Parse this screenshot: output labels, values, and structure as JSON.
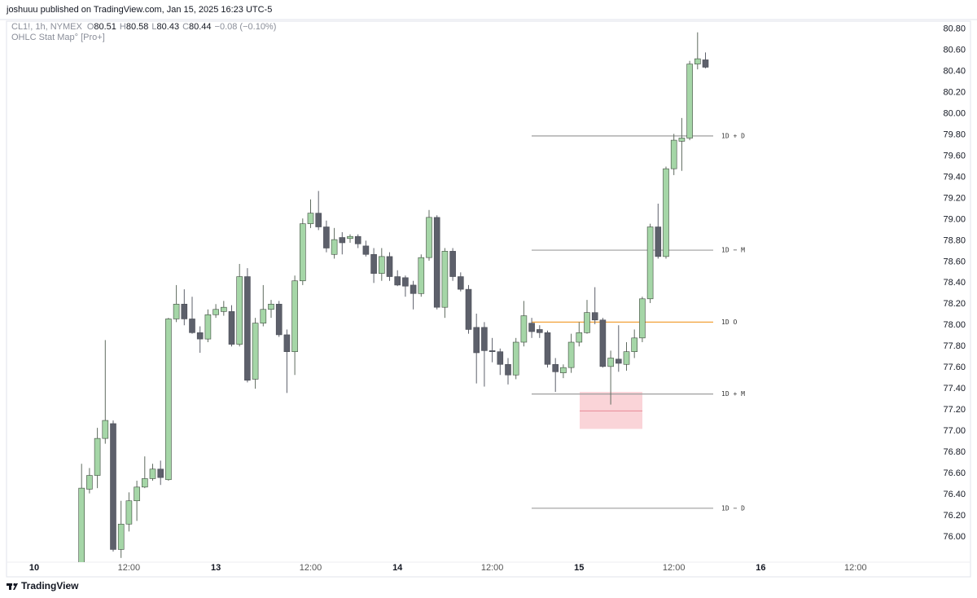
{
  "published": "joshuuu published on TradingView.com, Jan 15, 2025 16:23 UTC-5",
  "brand": "TradingView",
  "chart_data": {
    "type": "candlestick",
    "symbol": "CL1!, 1h, NYMEX",
    "ohlc": [
      {
        "label": "O",
        "value": 80.51
      },
      {
        "label": "H",
        "value": 80.58
      },
      {
        "label": "L",
        "value": 80.43
      },
      {
        "label": "C",
        "value": 80.44
      }
    ],
    "change": "−0.08 (−0.10%)",
    "indicator": "OHLC Stat Map° [Pro+]",
    "categories": [
      "10",
      null,
      null,
      null,
      null,
      null,
      null,
      null,
      null,
      null,
      null,
      null,
      "12:00",
      null,
      null,
      null,
      null,
      null,
      null,
      null,
      null,
      null,
      null,
      "13",
      null,
      null,
      null,
      null,
      null,
      null,
      null,
      null,
      null,
      null,
      null,
      "12:00",
      null,
      null,
      null,
      null,
      null,
      null,
      null,
      null,
      null,
      null,
      "14",
      null,
      null,
      null,
      null,
      null,
      null,
      null,
      null,
      null,
      null,
      null,
      "12:00",
      null,
      null,
      null,
      null,
      null,
      null,
      null,
      null,
      null,
      null,
      "15",
      null,
      null,
      null,
      null,
      null,
      null,
      null,
      null,
      null,
      null,
      null,
      "12:00",
      null,
      null,
      null,
      null,
      null,
      null,
      null,
      null,
      null,
      null,
      "16",
      null,
      null,
      null,
      null,
      null,
      null,
      null,
      null,
      null,
      null,
      null,
      "12:00"
    ],
    "open": [
      null,
      null,
      null,
      null,
      null,
      null,
      75.74,
      76.45,
      76.58,
      76.93,
      77.07,
      75.88,
      76.12,
      76.34,
      76.47,
      76.55,
      76.64,
      76.54,
      78.06,
      78.2,
      78.06,
      77.93,
      77.87,
      78.1,
      78.13,
      78.13,
      77.82,
      78.46,
      77.49,
      78.02,
      78.15,
      78.2,
      77.91,
      77.75,
      78.42,
      78.96,
      79.06,
      78.93,
      78.67,
      78.83,
      78.82,
      78.84,
      78.75,
      78.67,
      78.49,
      78.65,
      78.46,
      78.45,
      78.38,
      78.3,
      78.64,
      79.02,
      78.17,
      78.7,
      78.46,
      78.34,
      77.98,
      77.98,
      77.76,
      77.75,
      77.63,
      77.53,
      77.84,
      78.02,
      77.96,
      77.93,
      77.63,
      77.55,
      77.6,
      77.84,
      77.93,
      78.12,
      78.05,
      77.61,
      77.68,
      77.63,
      77.75,
      77.88,
      78.25,
      78.93,
      78.65,
      79.48,
      79.74,
      79.77,
      80.47,
      80.51,
      null,
      null,
      null,
      null,
      null,
      null,
      null,
      null,
      null,
      null,
      null,
      null,
      null,
      null,
      null,
      null,
      null,
      null,
      null
    ],
    "high": [
      null,
      null,
      null,
      null,
      null,
      null,
      76.69,
      76.65,
      77.03,
      77.86,
      77.1,
      76.34,
      76.42,
      76.53,
      76.76,
      76.69,
      76.72,
      78.07,
      78.38,
      78.34,
      78.27,
      77.99,
      78.15,
      78.2,
      78.23,
      78.19,
      78.58,
      78.54,
      78.07,
      78.38,
      78.24,
      78.23,
      77.96,
      78.47,
      79.01,
      79.19,
      79.27,
      78.99,
      78.92,
      78.88,
      78.86,
      78.86,
      78.8,
      78.73,
      78.73,
      78.69,
      78.52,
      78.47,
      78.42,
      78.67,
      79.09,
      79.04,
      78.73,
      78.73,
      78.5,
      78.38,
      78.11,
      78.03,
      77.88,
      77.78,
      77.69,
      77.88,
      78.23,
      78.07,
      78.0,
      77.95,
      77.69,
      77.63,
      77.92,
      78.03,
      78.24,
      78.36,
      78.07,
      77.76,
      78.0,
      77.84,
      77.96,
      78.27,
      78.96,
      79.15,
      79.5,
      79.81,
      79.96,
      80.5,
      80.77,
      80.58,
      null,
      null,
      null,
      null,
      null,
      null,
      null,
      null,
      null,
      null,
      null,
      null,
      null,
      null,
      null,
      null,
      null,
      null,
      null
    ],
    "low": [
      null,
      null,
      null,
      null,
      null,
      null,
      75.7,
      76.41,
      76.46,
      76.88,
      75.86,
      75.8,
      76.05,
      76.15,
      76.46,
      76.53,
      76.49,
      76.53,
      78.03,
      78.0,
      77.92,
      77.74,
      77.84,
      78.07,
      78.09,
      77.8,
      77.8,
      77.46,
      77.4,
      77.99,
      78.07,
      77.89,
      77.36,
      77.53,
      78.38,
      78.92,
      78.9,
      78.69,
      78.63,
      78.67,
      78.78,
      78.73,
      78.65,
      78.4,
      78.42,
      78.42,
      78.37,
      78.27,
      78.15,
      78.27,
      78.61,
      78.15,
      78.07,
      78.42,
      78.32,
      77.92,
      77.45,
      77.42,
      77.65,
      77.53,
      77.44,
      77.49,
      77.8,
      77.88,
      77.88,
      77.6,
      77.37,
      77.5,
      77.55,
      77.8,
      77.92,
      78.01,
      77.6,
      77.25,
      77.56,
      77.57,
      77.69,
      77.84,
      78.21,
      78.63,
      78.63,
      79.42,
      79.46,
      79.75,
      80.42,
      80.43,
      null,
      null,
      null,
      null,
      null,
      null,
      null,
      null,
      null,
      null,
      null,
      null,
      null,
      null,
      null,
      null,
      null,
      null,
      null
    ],
    "close": [
      null,
      null,
      null,
      null,
      null,
      null,
      76.46,
      76.58,
      76.93,
      77.1,
      75.88,
      76.12,
      76.34,
      76.47,
      76.55,
      76.64,
      76.56,
      78.06,
      78.2,
      78.06,
      77.93,
      77.87,
      78.1,
      78.15,
      78.17,
      77.82,
      78.46,
      77.48,
      78.02,
      78.15,
      78.2,
      77.91,
      77.75,
      78.42,
      78.96,
      79.06,
      78.93,
      78.73,
      78.81,
      78.78,
      78.84,
      78.77,
      78.67,
      78.49,
      78.65,
      78.46,
      78.38,
      78.37,
      78.3,
      78.64,
      79.02,
      78.17,
      78.7,
      78.46,
      78.34,
      77.96,
      77.74,
      77.76,
      77.75,
      77.63,
      77.53,
      77.84,
      78.09,
      77.94,
      77.93,
      77.63,
      77.56,
      77.6,
      77.84,
      77.93,
      78.12,
      78.05,
      77.61,
      77.69,
      77.64,
      77.75,
      77.88,
      78.25,
      78.93,
      78.65,
      79.48,
      79.75,
      79.77,
      80.47,
      80.52,
      80.44,
      null,
      null,
      null,
      null,
      null,
      null,
      null,
      null,
      null,
      null,
      null,
      null,
      null,
      null,
      null,
      null,
      null,
      null,
      null
    ],
    "up_color": "#a5d6a7",
    "down_color": "#5d606b",
    "ylim": [
      75.76,
      80.86
    ],
    "yticks": [
      {
        "value": 76.0,
        "label": "76.00"
      },
      {
        "value": 76.2,
        "label": "76.20"
      },
      {
        "value": 76.4,
        "label": "76.40"
      },
      {
        "value": 76.6,
        "label": "76.60"
      },
      {
        "value": 76.8,
        "label": "76.80"
      },
      {
        "value": 77.0,
        "label": "77.00"
      },
      {
        "value": 77.2,
        "label": "77.20"
      },
      {
        "value": 77.4,
        "label": "77.40"
      },
      {
        "value": 77.6,
        "label": "77.60"
      },
      {
        "value": 77.8,
        "label": "77.80"
      },
      {
        "value": 78.0,
        "label": "78.00"
      },
      {
        "value": 78.2,
        "label": "78.20"
      },
      {
        "value": 78.4,
        "label": "78.40"
      },
      {
        "value": 78.6,
        "label": "78.60"
      },
      {
        "value": 78.8,
        "label": "78.80"
      },
      {
        "value": 79.0,
        "label": "79.00"
      },
      {
        "value": 79.2,
        "label": "79.20"
      },
      {
        "value": 79.4,
        "label": "79.40"
      },
      {
        "value": 79.6,
        "label": "79.60"
      },
      {
        "value": 79.8,
        "label": "79.80"
      },
      {
        "value": 80.0,
        "label": "80.00"
      },
      {
        "value": 80.2,
        "label": "80.20"
      },
      {
        "value": 80.4,
        "label": "80.40"
      },
      {
        "value": 80.6,
        "label": "80.60"
      },
      {
        "value": 80.8,
        "label": "80.80"
      }
    ],
    "levels": [
      {
        "label": "1D + D",
        "value": 79.79,
        "color": "#9e9e9e"
      },
      {
        "label": "1D − M",
        "value": 78.71,
        "color": "#9e9e9e"
      },
      {
        "label": "1D O",
        "value": 78.03,
        "color": "#f2a23a"
      },
      {
        "label": "1D + M",
        "value": 77.35,
        "color": "#9e9e9e"
      },
      {
        "label": "1D − D",
        "value": 76.27,
        "color": "#9e9e9e"
      }
    ],
    "zone": {
      "top": 77.37,
      "bottom": 77.02,
      "mid": 77.19,
      "color": "#f8c5cb"
    }
  }
}
